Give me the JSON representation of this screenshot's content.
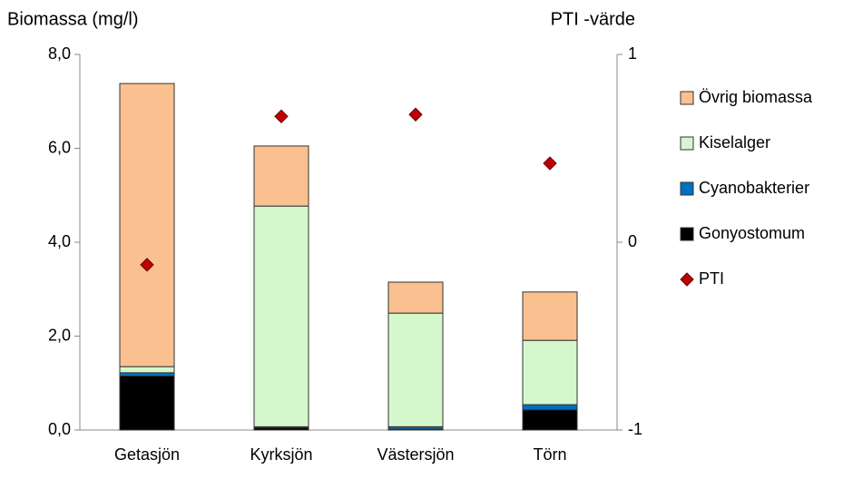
{
  "chart_data": {
    "type": "bar",
    "stacked": true,
    "y_label": "Biomassa (mg/l)",
    "y2_label": "PTI -värde",
    "categories": [
      "Getasjön",
      "Kyrksjön",
      "Västersjön",
      "Törn"
    ],
    "series": [
      {
        "name": "Gonyostomum",
        "color": "#000000",
        "values": [
          1.15,
          0.05,
          0.02,
          0.43
        ]
      },
      {
        "name": "Cyanobakterier",
        "color": "#0070C0",
        "values": [
          0.07,
          0.02,
          0.05,
          0.11
        ]
      },
      {
        "name": "Kiselalger",
        "color": "#D4F7CC",
        "values": [
          0.13,
          4.7,
          2.42,
          1.37
        ]
      },
      {
        "name": "Övrig biomassa",
        "color": "#FAC090",
        "values": [
          6.03,
          1.28,
          0.66,
          1.03
        ]
      },
      {
        "name": "PTI",
        "color": "#C00000",
        "type": "scatter",
        "axis": "y2",
        "values": [
          -0.12,
          0.67,
          0.68,
          0.42
        ]
      }
    ],
    "ylim": [
      0,
      8
    ],
    "yticks": [
      {
        "value": 0,
        "label": "0,0"
      },
      {
        "value": 2,
        "label": "2,0"
      },
      {
        "value": 4,
        "label": "4,0"
      },
      {
        "value": 6,
        "label": "6,0"
      },
      {
        "value": 8,
        "label": "8,0"
      }
    ],
    "y2lim": [
      -1,
      1
    ],
    "y2ticks": [
      -1,
      0,
      1
    ],
    "legend": "right",
    "grid": false
  }
}
